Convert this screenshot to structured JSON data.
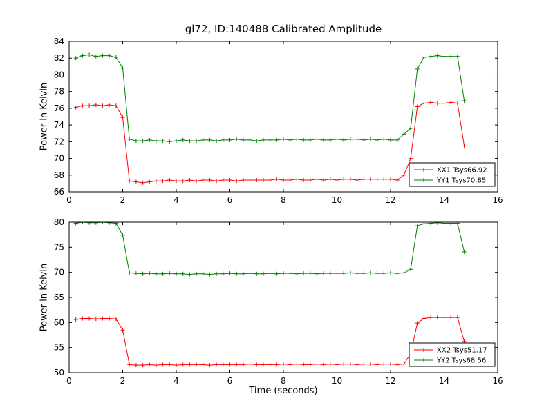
{
  "title": "gl72, ID:140488 Calibrated Amplitude",
  "colors": {
    "red": "#ff0000",
    "green": "#008000",
    "axis": "#000000",
    "background": "#ffffff"
  },
  "chart_data": [
    {
      "type": "line",
      "ylabel": "Power in Kelvin",
      "xlim": [
        0,
        16
      ],
      "ylim": [
        66,
        84
      ],
      "xticks": [
        0,
        2,
        4,
        6,
        8,
        10,
        12,
        14,
        16
      ],
      "yticks": [
        66,
        68,
        70,
        72,
        74,
        76,
        78,
        80,
        82,
        84
      ],
      "legend": {
        "position": "lower right",
        "entries": [
          "XX1 Tsys66.92",
          "YY1 Tsys70.85"
        ]
      },
      "x": [
        0.25,
        0.5,
        0.75,
        1.0,
        1.25,
        1.5,
        1.75,
        2.0,
        2.25,
        2.5,
        2.75,
        3.0,
        3.25,
        3.5,
        3.75,
        4.0,
        4.25,
        4.5,
        4.75,
        5.0,
        5.25,
        5.5,
        5.75,
        6.0,
        6.25,
        6.5,
        6.75,
        7.0,
        7.25,
        7.5,
        7.75,
        8.0,
        8.25,
        8.5,
        8.75,
        9.0,
        9.25,
        9.5,
        9.75,
        10.0,
        10.25,
        10.5,
        10.75,
        11.0,
        11.25,
        11.5,
        11.75,
        12.0,
        12.25,
        12.5,
        12.75,
        13.0,
        13.25,
        13.5,
        13.75,
        14.0,
        14.25,
        14.5,
        14.75
      ],
      "series": [
        {
          "name": "XX1 Tsys66.92",
          "color": "#ff0000",
          "marker": "+",
          "y": [
            76.1,
            76.3,
            76.3,
            76.4,
            76.3,
            76.4,
            76.3,
            74.9,
            67.3,
            67.2,
            67.1,
            67.2,
            67.3,
            67.3,
            67.4,
            67.3,
            67.3,
            67.4,
            67.3,
            67.4,
            67.4,
            67.3,
            67.4,
            67.4,
            67.3,
            67.4,
            67.4,
            67.4,
            67.4,
            67.4,
            67.5,
            67.4,
            67.4,
            67.5,
            67.4,
            67.4,
            67.5,
            67.4,
            67.5,
            67.4,
            67.5,
            67.5,
            67.4,
            67.5,
            67.5,
            67.5,
            67.5,
            67.5,
            67.4,
            68.0,
            70.0,
            76.2,
            76.6,
            76.7,
            76.6,
            76.6,
            76.7,
            76.6,
            71.5
          ]
        },
        {
          "name": "YY1 Tsys70.85",
          "color": "#008000",
          "marker": "+",
          "y": [
            82.0,
            82.3,
            82.4,
            82.2,
            82.3,
            82.3,
            82.1,
            80.8,
            72.3,
            72.1,
            72.1,
            72.2,
            72.1,
            72.1,
            72.0,
            72.1,
            72.2,
            72.1,
            72.1,
            72.2,
            72.2,
            72.1,
            72.2,
            72.2,
            72.3,
            72.2,
            72.2,
            72.1,
            72.2,
            72.2,
            72.2,
            72.3,
            72.2,
            72.3,
            72.2,
            72.2,
            72.3,
            72.2,
            72.2,
            72.3,
            72.2,
            72.3,
            72.3,
            72.2,
            72.3,
            72.2,
            72.3,
            72.2,
            72.2,
            72.9,
            73.6,
            80.7,
            82.1,
            82.2,
            82.3,
            82.2,
            82.2,
            82.2,
            76.9
          ]
        }
      ]
    },
    {
      "type": "line",
      "ylabel": "Power in Kelvin",
      "xlabel": "Time (seconds)",
      "xlim": [
        0,
        16
      ],
      "ylim": [
        50,
        80
      ],
      "xticks": [
        0,
        2,
        4,
        6,
        8,
        10,
        12,
        14,
        16
      ],
      "yticks": [
        50,
        55,
        60,
        65,
        70,
        75,
        80
      ],
      "legend": {
        "position": "lower right",
        "entries": [
          "XX2 Tsys51.17",
          "YY2 Tsys68.56"
        ]
      },
      "x": [
        0.25,
        0.5,
        0.75,
        1.0,
        1.25,
        1.5,
        1.75,
        2.0,
        2.25,
        2.5,
        2.75,
        3.0,
        3.25,
        3.5,
        3.75,
        4.0,
        4.25,
        4.5,
        4.75,
        5.0,
        5.25,
        5.5,
        5.75,
        6.0,
        6.25,
        6.5,
        6.75,
        7.0,
        7.25,
        7.5,
        7.75,
        8.0,
        8.25,
        8.5,
        8.75,
        9.0,
        9.25,
        9.5,
        9.75,
        10.0,
        10.25,
        10.5,
        10.75,
        11.0,
        11.25,
        11.5,
        11.75,
        12.0,
        12.25,
        12.5,
        12.75,
        13.0,
        13.25,
        13.5,
        13.75,
        14.0,
        14.25,
        14.5,
        14.75
      ],
      "series": [
        {
          "name": "XX2 Tsys51.17",
          "color": "#ff0000",
          "marker": "+",
          "y": [
            60.6,
            60.8,
            60.8,
            60.7,
            60.8,
            60.8,
            60.7,
            58.5,
            51.6,
            51.5,
            51.5,
            51.6,
            51.5,
            51.6,
            51.6,
            51.5,
            51.6,
            51.6,
            51.6,
            51.6,
            51.5,
            51.6,
            51.6,
            51.6,
            51.6,
            51.6,
            51.7,
            51.6,
            51.6,
            51.6,
            51.6,
            51.7,
            51.6,
            51.7,
            51.6,
            51.6,
            51.7,
            51.6,
            51.7,
            51.6,
            51.7,
            51.7,
            51.6,
            51.7,
            51.7,
            51.6,
            51.7,
            51.7,
            51.6,
            51.7,
            53.8,
            59.9,
            60.8,
            61.0,
            61.0,
            61.0,
            61.0,
            61.0,
            56.2
          ]
        },
        {
          "name": "YY2 Tsys68.56",
          "color": "#008000",
          "marker": "+",
          "y": [
            79.8,
            80.0,
            79.9,
            79.9,
            80.0,
            79.9,
            79.8,
            77.4,
            69.9,
            69.8,
            69.7,
            69.8,
            69.7,
            69.7,
            69.8,
            69.7,
            69.7,
            69.6,
            69.7,
            69.7,
            69.6,
            69.7,
            69.7,
            69.8,
            69.7,
            69.7,
            69.8,
            69.7,
            69.7,
            69.8,
            69.7,
            69.8,
            69.8,
            69.7,
            69.8,
            69.8,
            69.7,
            69.8,
            69.8,
            69.8,
            69.8,
            69.9,
            69.8,
            69.8,
            69.9,
            69.8,
            69.8,
            69.9,
            69.8,
            69.9,
            70.6,
            79.3,
            79.7,
            79.8,
            79.9,
            79.8,
            79.8,
            79.8,
            74.1
          ]
        }
      ]
    }
  ]
}
